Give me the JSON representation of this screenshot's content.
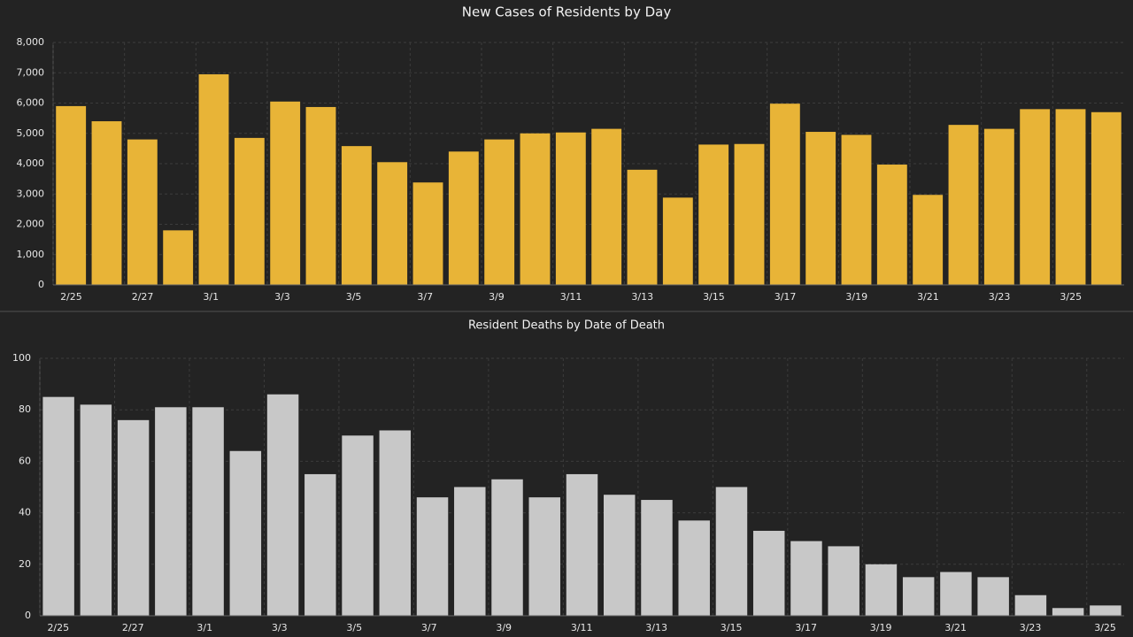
{
  "chart_data": [
    {
      "type": "bar",
      "title": "New Cases of Residents by Day",
      "categories": [
        "2/25",
        null,
        "2/27",
        null,
        "3/1",
        null,
        "3/3",
        null,
        "3/5",
        null,
        "3/7",
        null,
        "3/9",
        null,
        "3/11",
        null,
        "3/13",
        null,
        "3/15",
        null,
        "3/17",
        null,
        "3/19",
        null,
        "3/21",
        null,
        "3/23",
        null,
        "3/25",
        null
      ],
      "values": [
        5900,
        5400,
        4800,
        1800,
        6950,
        4850,
        6050,
        5870,
        4580,
        4050,
        3380,
        4400,
        4800,
        5000,
        5030,
        5150,
        3800,
        2880,
        4630,
        4650,
        5980,
        5050,
        4950,
        3970,
        2970,
        5280,
        5150,
        5800,
        5800,
        5700
      ],
      "color": "#e8b437",
      "ylim": [
        0,
        8000
      ],
      "yticks": [
        0,
        {
          "value": 1000,
          "label": "1,000"
        },
        {
          "value": 2000,
          "label": "2,000"
        },
        {
          "value": 3000,
          "label": "3,000"
        },
        {
          "value": 4000,
          "label": "4,000"
        },
        {
          "value": 5000,
          "label": "5,000"
        },
        {
          "value": 6000,
          "label": "6,000"
        },
        {
          "value": 7000,
          "label": "7,000"
        },
        {
          "value": 8000,
          "label": "8,000"
        }
      ],
      "grid": true
    },
    {
      "type": "bar",
      "title": "Resident Deaths by Date of Death",
      "categories": [
        "2/25",
        null,
        "2/27",
        null,
        "3/1",
        null,
        "3/3",
        null,
        "3/5",
        null,
        "3/7",
        null,
        "3/9",
        null,
        "3/11",
        null,
        "3/13",
        null,
        "3/15",
        null,
        "3/17",
        null,
        "3/19",
        null,
        "3/21",
        null,
        "3/23",
        null,
        "3/25"
      ],
      "values": [
        85,
        82,
        76,
        81,
        81,
        64,
        86,
        55,
        70,
        72,
        46,
        50,
        53,
        46,
        55,
        47,
        45,
        37,
        50,
        33,
        29,
        27,
        20,
        15,
        17,
        15,
        8,
        3,
        4
      ],
      "color": "#c8c8c8",
      "ylim": [
        0,
        100
      ],
      "yticks": [
        0,
        20,
        40,
        60,
        80,
        100
      ],
      "grid": true
    }
  ]
}
